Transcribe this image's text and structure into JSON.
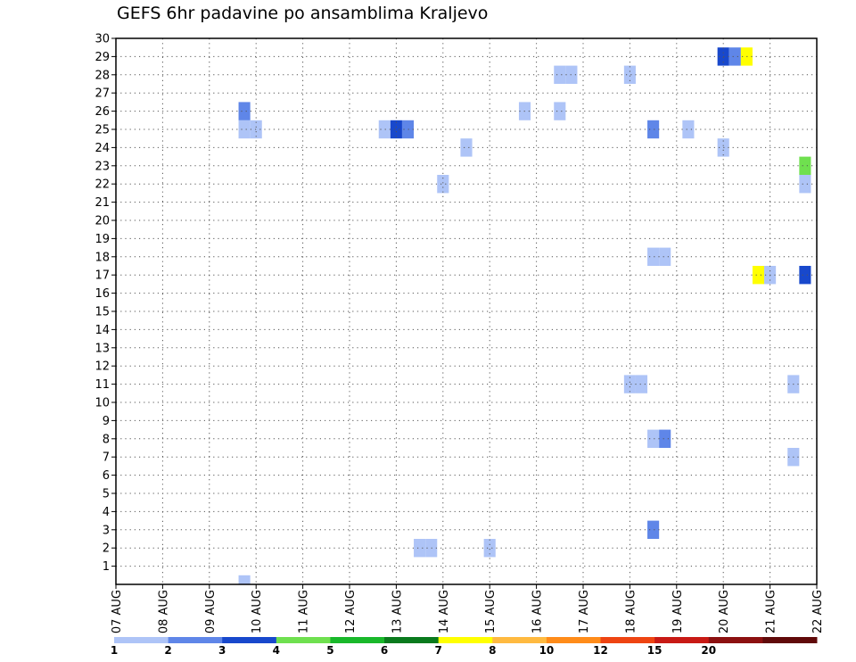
{
  "chart_data": {
    "type": "heatmap",
    "title": "GEFS 6hr padavine po ansamblima Kraljevo",
    "x_tick_labels": [
      "07 AUG",
      "08 AUG",
      "09 AUG",
      "10 AUG",
      "11 AUG",
      "12 AUG",
      "13 AUG",
      "14 AUG",
      "15 AUG",
      "16 AUG",
      "17 AUG",
      "18 AUG",
      "19 AUG",
      "20 AUG",
      "21 AUG",
      "22 AUG"
    ],
    "x_range_days": [
      0,
      15
    ],
    "y_tick_labels": [
      "1",
      "2",
      "3",
      "4",
      "5",
      "6",
      "7",
      "8",
      "9",
      "10",
      "11",
      "12",
      "13",
      "14",
      "15",
      "16",
      "17",
      "18",
      "19",
      "20",
      "21",
      "22",
      "23",
      "24",
      "25",
      "26",
      "27",
      "28",
      "29",
      "30"
    ],
    "y_range": [
      0,
      30
    ],
    "grid": true,
    "legend": {
      "placement": "bottom",
      "colors": [
        "#aec4f7",
        "#5f86e8",
        "#1848cc",
        "#6fe04f",
        "#19b82a",
        "#0a7a1d",
        "#ffff00",
        "#ffba40",
        "#ff8c1a",
        "#ee4412",
        "#c81a15",
        "#8c1010",
        "#600a0a"
      ],
      "tick_labels": [
        "1",
        "2",
        "3",
        "4",
        "5",
        "6",
        "7",
        "8",
        "10",
        "12",
        "15",
        "20"
      ]
    },
    "cells": [
      {
        "day": 2.75,
        "member": 0,
        "value": 1.5
      },
      {
        "day": 2.75,
        "member": 25,
        "value": 1.5
      },
      {
        "day": 3.0,
        "member": 25,
        "value": 1.5
      },
      {
        "day": 2.75,
        "member": 26,
        "value": 2.5
      },
      {
        "day": 5.75,
        "member": 25,
        "value": 1.5
      },
      {
        "day": 6.0,
        "member": 25,
        "value": 3.5
      },
      {
        "day": 6.25,
        "member": 25,
        "value": 2.5
      },
      {
        "day": 6.5,
        "member": 2,
        "value": 1.5
      },
      {
        "day": 6.75,
        "member": 2,
        "value": 1.5
      },
      {
        "day": 7.0,
        "member": 22,
        "value": 1.5
      },
      {
        "day": 7.5,
        "member": 24,
        "value": 1.5
      },
      {
        "day": 8.0,
        "member": 2,
        "value": 1.5
      },
      {
        "day": 8.75,
        "member": 26,
        "value": 1.5
      },
      {
        "day": 9.5,
        "member": 26,
        "value": 1.5
      },
      {
        "day": 9.5,
        "member": 28,
        "value": 1.5
      },
      {
        "day": 9.75,
        "member": 28,
        "value": 1.5
      },
      {
        "day": 11.0,
        "member": 11,
        "value": 1.5
      },
      {
        "day": 11.25,
        "member": 11,
        "value": 1.5
      },
      {
        "day": 11.0,
        "member": 28,
        "value": 1.5
      },
      {
        "day": 11.5,
        "member": 3,
        "value": 2.5
      },
      {
        "day": 11.5,
        "member": 8,
        "value": 1.5
      },
      {
        "day": 11.75,
        "member": 8,
        "value": 2.5
      },
      {
        "day": 11.5,
        "member": 18,
        "value": 1.5
      },
      {
        "day": 11.75,
        "member": 18,
        "value": 1.5
      },
      {
        "day": 11.5,
        "member": 25,
        "value": 2.5
      },
      {
        "day": 12.25,
        "member": 25,
        "value": 1.5
      },
      {
        "day": 13.0,
        "member": 24,
        "value": 1.5
      },
      {
        "day": 13.0,
        "member": 29,
        "value": 3.5
      },
      {
        "day": 13.25,
        "member": 29,
        "value": 2.5
      },
      {
        "day": 13.5,
        "member": 29,
        "value": 7.5
      },
      {
        "day": 13.75,
        "member": 17,
        "value": 7.5
      },
      {
        "day": 14.0,
        "member": 17,
        "value": 1.5
      },
      {
        "day": 14.5,
        "member": 7,
        "value": 1.5
      },
      {
        "day": 14.5,
        "member": 11,
        "value": 1.5
      },
      {
        "day": 14.75,
        "member": 17,
        "value": 3.5
      },
      {
        "day": 14.75,
        "member": 22,
        "value": 1.5
      },
      {
        "day": 14.75,
        "member": 23,
        "value": 4.5
      }
    ]
  }
}
